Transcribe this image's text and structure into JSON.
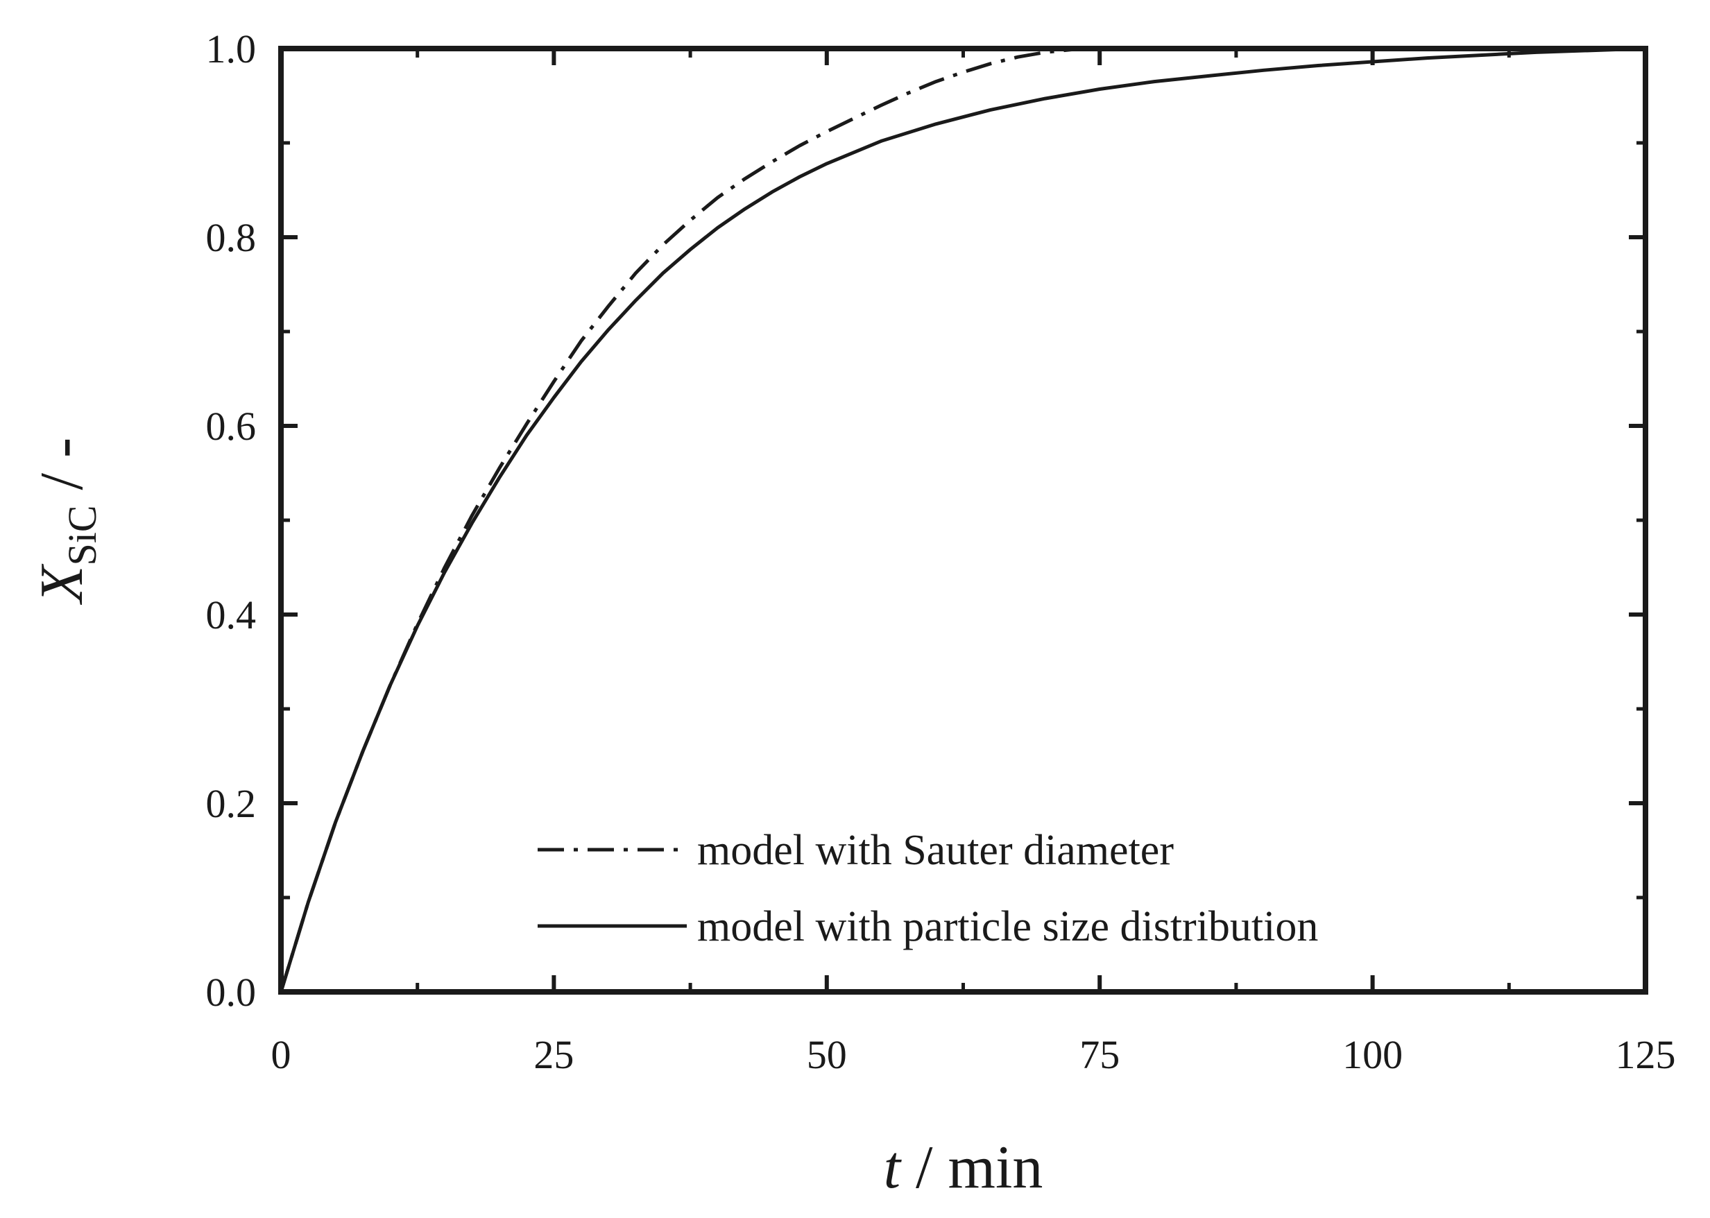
{
  "chart_data": {
    "type": "line",
    "xlabel": {
      "var": "t",
      "sep": " / ",
      "unit": "min"
    },
    "ylabel": {
      "var": "X",
      "sub": "SiC",
      "sep": " / ",
      "unit": "-"
    },
    "xlim": [
      0,
      125
    ],
    "ylim": [
      0,
      1
    ],
    "xticks": [
      0,
      25,
      50,
      75,
      100,
      125
    ],
    "xtick_labels": [
      "0",
      "25",
      "50",
      "75",
      "100",
      "125"
    ],
    "yticks": [
      0,
      0.2,
      0.4,
      0.6,
      0.8,
      1.0
    ],
    "ytick_labels": [
      "0.0",
      "0.2",
      "0.4",
      "0.6",
      "0.8",
      "1.0"
    ],
    "grid": false,
    "legend_position": "bottom-right",
    "series": [
      {
        "name": "model with Sauter diameter",
        "style": "dash-dot",
        "color": "#1a1a1a",
        "x": [
          0,
          2.5,
          5,
          7.5,
          10,
          12.5,
          15,
          17.5,
          20,
          22.5,
          25,
          27.5,
          30,
          32.5,
          35,
          37.5,
          40,
          42.5,
          45,
          47.5,
          50,
          52.5,
          55,
          57.5,
          60,
          62.5,
          65,
          67.5,
          70,
          72.5,
          75,
          80,
          90,
          100,
          110,
          125
        ],
        "y": [
          0,
          0.095,
          0.18,
          0.255,
          0.325,
          0.39,
          0.45,
          0.505,
          0.555,
          0.602,
          0.647,
          0.69,
          0.727,
          0.762,
          0.792,
          0.818,
          0.842,
          0.862,
          0.88,
          0.897,
          0.912,
          0.926,
          0.94,
          0.953,
          0.965,
          0.975,
          0.984,
          0.991,
          0.996,
          0.999,
          1.0,
          1.0,
          1.0,
          1.0,
          1.0,
          1.0
        ]
      },
      {
        "name": "model with particle size distribution",
        "style": "solid",
        "color": "#1a1a1a",
        "x": [
          0,
          2.5,
          5,
          7.5,
          10,
          12.5,
          15,
          17.5,
          20,
          22.5,
          25,
          27.5,
          30,
          32.5,
          35,
          37.5,
          40,
          42.5,
          45,
          47.5,
          50,
          55,
          60,
          65,
          70,
          75,
          80,
          85,
          90,
          95,
          100,
          105,
          110,
          115,
          120,
          125
        ],
        "y": [
          0,
          0.095,
          0.18,
          0.255,
          0.325,
          0.388,
          0.445,
          0.497,
          0.545,
          0.59,
          0.63,
          0.668,
          0.702,
          0.733,
          0.762,
          0.787,
          0.81,
          0.83,
          0.848,
          0.864,
          0.878,
          0.902,
          0.92,
          0.935,
          0.947,
          0.957,
          0.965,
          0.971,
          0.977,
          0.982,
          0.986,
          0.99,
          0.993,
          0.996,
          0.998,
          1.0
        ]
      }
    ]
  }
}
